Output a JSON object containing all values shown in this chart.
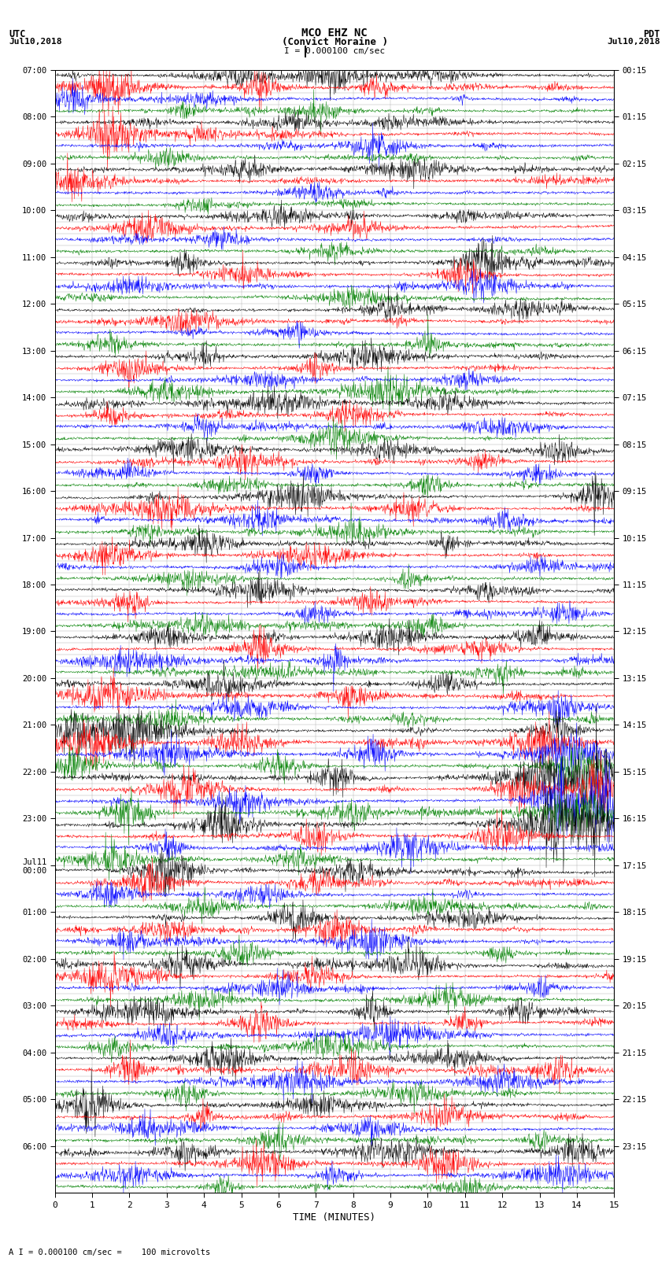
{
  "title_line1": "MCO EHZ NC",
  "title_line2": "(Convict Moraine )",
  "scale_label": "I = 0.000100 cm/sec",
  "left_header_1": "UTC",
  "left_header_2": "Jul10,2018",
  "right_header_1": "PDT",
  "right_header_2": "Jul10,2018",
  "bottom_label": "TIME (MINUTES)",
  "bottom_note": "A I = 0.000100 cm/sec =    100 microvolts",
  "utc_labels": [
    "07:00",
    "08:00",
    "09:00",
    "10:00",
    "11:00",
    "12:00",
    "13:00",
    "14:00",
    "15:00",
    "16:00",
    "17:00",
    "18:00",
    "19:00",
    "20:00",
    "21:00",
    "22:00",
    "23:00",
    "Jul11\n00:00",
    "01:00",
    "02:00",
    "03:00",
    "04:00",
    "05:00",
    "06:00"
  ],
  "pdt_labels": [
    "00:15",
    "01:15",
    "02:15",
    "03:15",
    "04:15",
    "05:15",
    "06:15",
    "07:15",
    "08:15",
    "09:15",
    "10:15",
    "11:15",
    "12:15",
    "13:15",
    "14:15",
    "15:15",
    "16:15",
    "17:15",
    "18:15",
    "19:15",
    "20:15",
    "21:15",
    "22:15",
    "23:15"
  ],
  "colors": [
    "black",
    "red",
    "blue",
    "green"
  ],
  "n_rows": 96,
  "n_cols": 1500,
  "minutes": 15,
  "bg_color": "white",
  "grid_color": "#999999",
  "base_noise": 0.25,
  "trace_scale": 0.42
}
